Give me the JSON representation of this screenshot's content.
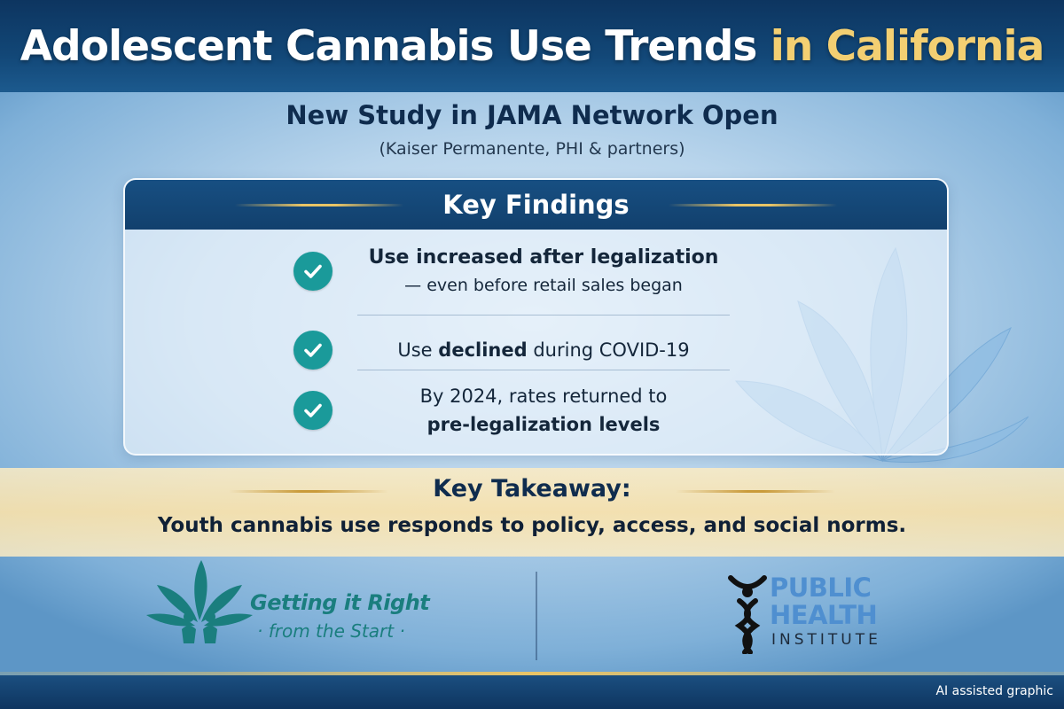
{
  "header": {
    "title_main": "Adolescent Cannabis Use Trends",
    "title_accent": "in California"
  },
  "study": {
    "title": "New Study in JAMA Network Open",
    "authors": "(Kaiser Permanente, PHI & partners)"
  },
  "findings": {
    "heading": "Key Findings",
    "items": [
      {
        "line1": "Use increased after legalization",
        "line2": "— even before retail sales began"
      },
      {
        "prefix": "Use ",
        "bold": "declined",
        "suffix": " during COVID-19"
      },
      {
        "line1": "By 2024, rates returned to",
        "line2": "pre-legalization levels"
      }
    ]
  },
  "takeaway": {
    "heading": "Key Takeaway:",
    "body": "Youth cannabis use responds to policy, access, and social norms."
  },
  "logos": {
    "gir": {
      "line1": "Getting it Right",
      "line2": "· from the Start ·"
    },
    "phi": {
      "line1": "PUBLIC",
      "line2": "HEALTH",
      "line3": "INSTITUTE"
    }
  },
  "footer": {
    "note": "AI assisted graphic"
  },
  "colors": {
    "header_bg": "#124777",
    "accent_gold": "#f3cf72",
    "check_teal": "#1a9a9a",
    "gir_teal": "#1a7e7e",
    "phi_blue": "#4f8fd0"
  },
  "icons": {
    "check": "check-circle-icon",
    "leaf": "cannabis-leaf-icon"
  }
}
